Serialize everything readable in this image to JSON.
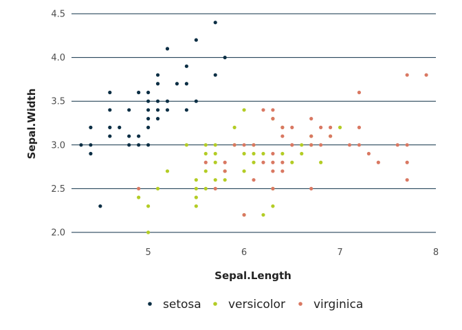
{
  "chart_data": {
    "type": "scatter",
    "xlabel": "Sepal.Length",
    "ylabel": "Sepal.Width",
    "xlim": [
      4.2,
      8.0
    ],
    "ylim": [
      2.0,
      4.5
    ],
    "x_ticks": [
      5,
      6,
      7,
      8
    ],
    "y_ticks": [
      2.0,
      2.5,
      3.0,
      3.5,
      4.0,
      4.5
    ],
    "grid": "horizontal",
    "legend_position": "bottom",
    "series": [
      {
        "name": "setosa",
        "color": "#0b2e44",
        "points": [
          [
            4.3,
            3.0
          ],
          [
            4.4,
            3.0
          ],
          [
            4.4,
            3.2
          ],
          [
            4.4,
            2.9
          ],
          [
            4.5,
            2.3
          ],
          [
            4.6,
            3.1
          ],
          [
            4.6,
            3.4
          ],
          [
            4.6,
            3.6
          ],
          [
            4.6,
            3.2
          ],
          [
            4.7,
            3.2
          ],
          [
            4.8,
            3.4
          ],
          [
            4.8,
            3.0
          ],
          [
            4.8,
            3.1
          ],
          [
            4.9,
            3.0
          ],
          [
            4.9,
            3.1
          ],
          [
            4.9,
            3.6
          ],
          [
            5.0,
            3.6
          ],
          [
            5.0,
            3.4
          ],
          [
            5.0,
            3.0
          ],
          [
            5.0,
            3.5
          ],
          [
            5.0,
            3.3
          ],
          [
            5.0,
            3.2
          ],
          [
            5.1,
            3.5
          ],
          [
            5.1,
            3.8
          ],
          [
            5.1,
            3.7
          ],
          [
            5.1,
            3.3
          ],
          [
            5.1,
            3.4
          ],
          [
            5.2,
            3.5
          ],
          [
            5.2,
            3.4
          ],
          [
            5.2,
            4.1
          ],
          [
            5.3,
            3.7
          ],
          [
            5.4,
            3.9
          ],
          [
            5.4,
            3.7
          ],
          [
            5.4,
            3.4
          ],
          [
            5.5,
            4.2
          ],
          [
            5.5,
            3.5
          ],
          [
            5.7,
            4.4
          ],
          [
            5.7,
            3.8
          ],
          [
            5.8,
            4.0
          ]
        ]
      },
      {
        "name": "versicolor",
        "color": "#b3cc25",
        "points": [
          [
            4.9,
            2.4
          ],
          [
            5.0,
            2.0
          ],
          [
            5.0,
            2.3
          ],
          [
            5.1,
            2.5
          ],
          [
            5.2,
            2.7
          ],
          [
            5.4,
            3.0
          ],
          [
            5.5,
            2.3
          ],
          [
            5.5,
            2.4
          ],
          [
            5.5,
            2.5
          ],
          [
            5.5,
            2.6
          ],
          [
            5.6,
            2.9
          ],
          [
            5.6,
            3.0
          ],
          [
            5.6,
            2.5
          ],
          [
            5.6,
            2.7
          ],
          [
            5.7,
            2.8
          ],
          [
            5.7,
            2.6
          ],
          [
            5.7,
            3.0
          ],
          [
            5.7,
            2.9
          ],
          [
            5.8,
            2.7
          ],
          [
            5.8,
            2.6
          ],
          [
            5.9,
            3.0
          ],
          [
            5.9,
            3.2
          ],
          [
            6.0,
            2.2
          ],
          [
            6.0,
            2.9
          ],
          [
            6.0,
            2.7
          ],
          [
            6.0,
            3.4
          ],
          [
            6.1,
            2.9
          ],
          [
            6.1,
            2.8
          ],
          [
            6.1,
            3.0
          ],
          [
            6.2,
            2.2
          ],
          [
            6.2,
            2.9
          ],
          [
            6.3,
            3.3
          ],
          [
            6.3,
            2.5
          ],
          [
            6.3,
            2.3
          ],
          [
            6.4,
            3.2
          ],
          [
            6.4,
            2.9
          ],
          [
            6.5,
            2.8
          ],
          [
            6.6,
            2.9
          ],
          [
            6.6,
            3.0
          ],
          [
            6.7,
            3.1
          ],
          [
            6.7,
            3.0
          ],
          [
            6.8,
            2.8
          ],
          [
            6.9,
            3.1
          ],
          [
            7.0,
            3.2
          ]
        ]
      },
      {
        "name": "virginica",
        "color": "#d97862",
        "points": [
          [
            4.9,
            2.5
          ],
          [
            5.6,
            2.8
          ],
          [
            5.7,
            2.5
          ],
          [
            5.8,
            2.7
          ],
          [
            5.8,
            2.8
          ],
          [
            5.9,
            3.0
          ],
          [
            6.0,
            2.2
          ],
          [
            6.0,
            3.0
          ],
          [
            6.1,
            3.0
          ],
          [
            6.1,
            2.6
          ],
          [
            6.2,
            2.8
          ],
          [
            6.2,
            3.4
          ],
          [
            6.3,
            3.3
          ],
          [
            6.3,
            2.9
          ],
          [
            6.3,
            2.7
          ],
          [
            6.3,
            2.5
          ],
          [
            6.3,
            3.4
          ],
          [
            6.3,
            2.8
          ],
          [
            6.4,
            2.7
          ],
          [
            6.4,
            3.2
          ],
          [
            6.4,
            2.8
          ],
          [
            6.4,
            3.1
          ],
          [
            6.5,
            3.0
          ],
          [
            6.5,
            3.2
          ],
          [
            6.5,
            3.0
          ],
          [
            6.7,
            2.5
          ],
          [
            6.7,
            3.3
          ],
          [
            6.7,
            3.1
          ],
          [
            6.7,
            3.0
          ],
          [
            6.8,
            3.0
          ],
          [
            6.8,
            3.2
          ],
          [
            6.9,
            3.1
          ],
          [
            6.9,
            3.2
          ],
          [
            7.1,
            3.0
          ],
          [
            7.2,
            3.6
          ],
          [
            7.2,
            3.2
          ],
          [
            7.2,
            3.0
          ],
          [
            7.3,
            2.9
          ],
          [
            7.4,
            2.8
          ],
          [
            7.6,
            3.0
          ],
          [
            7.7,
            3.8
          ],
          [
            7.7,
            2.6
          ],
          [
            7.7,
            2.8
          ],
          [
            7.7,
            3.0
          ],
          [
            7.9,
            3.8
          ]
        ]
      }
    ]
  }
}
